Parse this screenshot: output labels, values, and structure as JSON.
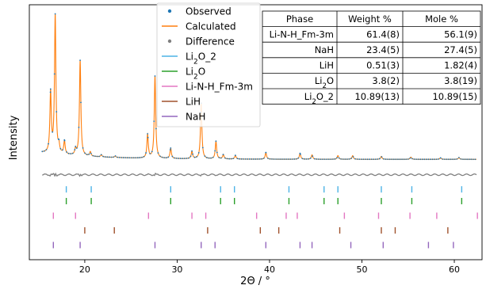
{
  "chart_data": {
    "type": "line",
    "xlabel": "2Θ / °",
    "ylabel": "Intensity",
    "xlim": [
      14,
      63
    ],
    "ylim": [
      -6.8,
      10.6
    ],
    "grid": false,
    "legend_position": "top",
    "x_ticks": [
      20,
      30,
      40,
      50,
      60
    ],
    "y_ticks": [],
    "baselines": {
      "pattern": 0,
      "difference": -1.0
    },
    "series": [
      {
        "name": "Observed",
        "kind": "points",
        "color": "#1f77b4"
      },
      {
        "name": "Calculated",
        "kind": "line",
        "color": "#ff7f0e"
      },
      {
        "name": "Difference",
        "kind": "points",
        "color": "#7f7f7f"
      }
    ],
    "peaks": [
      [
        16.3,
        4.1
      ],
      [
        16.8,
        9.4
      ],
      [
        17.2,
        0.5
      ],
      [
        17.8,
        0.9
      ],
      [
        19.0,
        0.4
      ],
      [
        19.5,
        6.5
      ],
      [
        20.6,
        0.3
      ],
      [
        21.8,
        0.15
      ],
      [
        23.3,
        0.1
      ],
      [
        26.8,
        1.6
      ],
      [
        27.6,
        5.6
      ],
      [
        29.3,
        0.7
      ],
      [
        31.6,
        0.5
      ],
      [
        32.6,
        3.8
      ],
      [
        34.2,
        1.2
      ],
      [
        35.0,
        0.3
      ],
      [
        36.3,
        0.25
      ],
      [
        39.6,
        0.45
      ],
      [
        43.3,
        0.4
      ],
      [
        44.6,
        0.3
      ],
      [
        47.4,
        0.25
      ],
      [
        49.0,
        0.25
      ],
      [
        52.1,
        0.2
      ],
      [
        55.3,
        0.15
      ],
      [
        58.5,
        0.1
      ],
      [
        60.5,
        0.12
      ]
    ],
    "reflections": [
      {
        "name": "Li₂O_2",
        "color": "#4db3e6",
        "level": -2.0,
        "positions": [
          18.0,
          20.7,
          29.3,
          34.7,
          36.2,
          42.1,
          45.9,
          47.4,
          52.1,
          55.4,
          60.8
        ]
      },
      {
        "name": "Li₂O",
        "color": "#2ca02c",
        "level": -2.8,
        "positions": [
          18.0,
          20.7,
          29.3,
          34.7,
          36.2,
          42.1,
          45.9,
          47.4,
          52.1,
          55.4,
          60.8
        ]
      },
      {
        "name": "Li-N-H_Fm-3m",
        "color": "#e377c2",
        "level": -3.8,
        "positions": [
          16.6,
          19.0,
          26.9,
          31.6,
          33.1,
          38.6,
          41.8,
          43.0,
          48.1,
          51.8,
          55.2,
          58.1,
          62.5
        ]
      },
      {
        "name": "LiH",
        "color": "#a0522d",
        "level": -4.8,
        "positions": [
          20.0,
          23.2,
          33.3,
          39.0,
          41.0,
          47.6,
          52.1,
          53.6,
          59.3
        ]
      },
      {
        "name": "NaH",
        "color": "#9467bd",
        "level": -5.8,
        "positions": [
          16.6,
          19.5,
          27.6,
          32.6,
          34.1,
          39.6,
          43.3,
          44.6,
          48.8,
          52.3,
          57.2,
          59.9
        ]
      }
    ]
  },
  "phase_table": {
    "headers": [
      "Phase",
      "Weight %",
      "Mole %"
    ],
    "rows": [
      [
        "Li-N-H_Fm-3m",
        "61.4(8)",
        "56.1(9)"
      ],
      [
        "NaH",
        "23.4(5)",
        "27.4(5)"
      ],
      [
        "LiH",
        "0.51(3)",
        "1.82(4)"
      ],
      [
        "Li₂O",
        "3.8(2)",
        "3.8(19)"
      ],
      [
        "Li₂O_2",
        "10.89(13)",
        "10.89(15)"
      ]
    ]
  }
}
